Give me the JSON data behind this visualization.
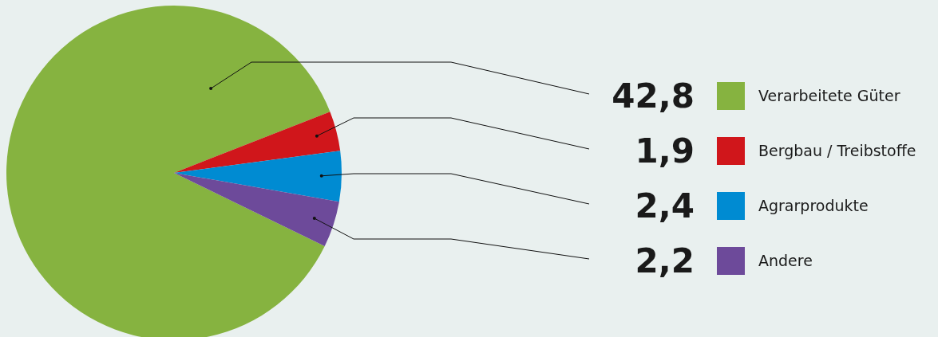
{
  "chart_data": {
    "type": "pie",
    "categories": [
      "Verarbeitete Güter",
      "Bergbau / Treibstoffe",
      "Agrarprodukte",
      "Andere"
    ],
    "values": [
      42.8,
      1.9,
      2.4,
      2.2
    ],
    "colors": [
      "#86b340",
      "#d0161b",
      "#008bd2",
      "#6d4a9a"
    ],
    "value_labels": [
      "42,8",
      "1,9",
      "2,4",
      "2,2"
    ],
    "legend": "right"
  }
}
